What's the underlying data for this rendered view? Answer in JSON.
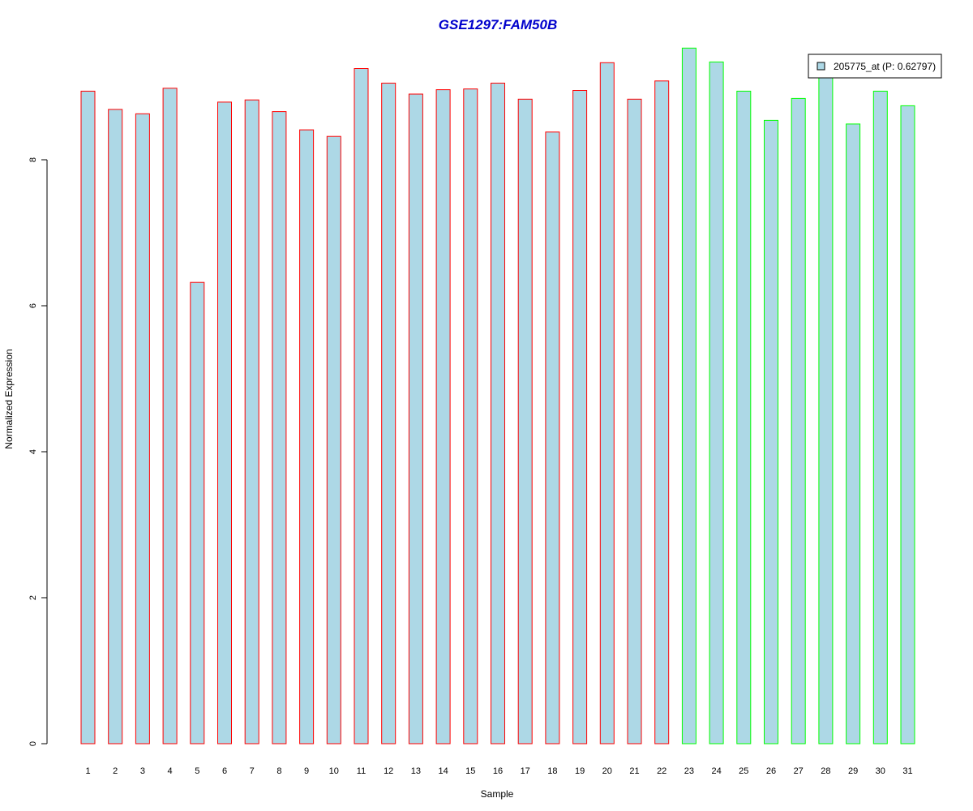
{
  "chart_data": {
    "type": "bar",
    "title": "GSE1297:FAM50B",
    "xlabel": "Sample",
    "ylabel": "Normalized Expression",
    "categories": [
      "1",
      "2",
      "3",
      "4",
      "5",
      "6",
      "7",
      "8",
      "9",
      "10",
      "11",
      "12",
      "13",
      "14",
      "15",
      "16",
      "17",
      "18",
      "19",
      "20",
      "21",
      "22",
      "23",
      "24",
      "25",
      "26",
      "27",
      "28",
      "29",
      "30",
      "31"
    ],
    "values": [
      8.94,
      8.69,
      8.63,
      8.98,
      6.32,
      8.79,
      8.82,
      8.66,
      8.41,
      8.32,
      9.25,
      9.05,
      8.9,
      8.96,
      8.97,
      9.05,
      8.83,
      8.38,
      8.95,
      9.33,
      8.83,
      9.08,
      9.53,
      9.34,
      8.94,
      8.54,
      8.84,
      9.17,
      8.49,
      8.94,
      8.74
    ],
    "groups": [
      1,
      1,
      1,
      1,
      1,
      1,
      1,
      1,
      1,
      1,
      1,
      1,
      1,
      1,
      1,
      1,
      1,
      1,
      1,
      1,
      1,
      1,
      2,
      2,
      2,
      2,
      2,
      2,
      2,
      2,
      2
    ],
    "yticks": [
      0,
      2,
      4,
      6,
      8
    ],
    "ylim": [
      0,
      9.6
    ],
    "legend": {
      "label": "205775_at (P: 0.62797)",
      "placement": "top-right"
    },
    "grid": false
  },
  "colors": {
    "bar_fill": "#add8e6",
    "group1_border": "#ff0000",
    "group2_border": "#00ff00",
    "title": "#0000cc",
    "axis": "#000000"
  }
}
